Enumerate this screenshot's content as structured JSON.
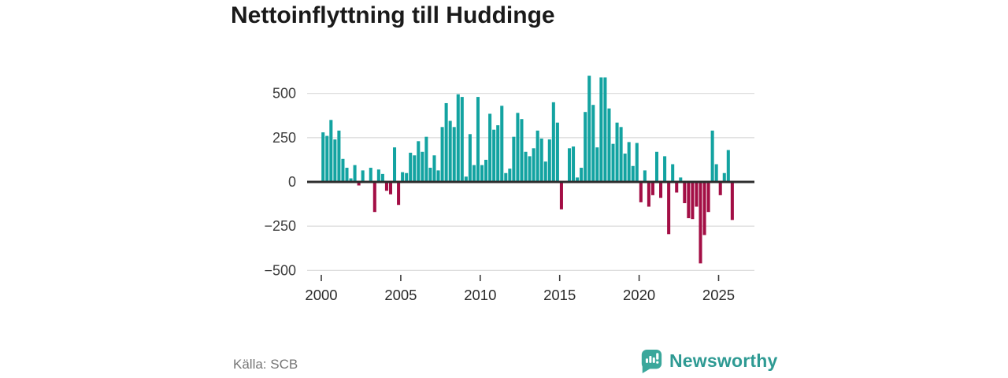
{
  "title": "Nettoinflyttning till Huddinge",
  "source": "Källa: SCB",
  "brand": {
    "name": "Newsworthy",
    "text_color": "#2e9a93",
    "icon_color": "#3aa79b"
  },
  "chart_data": {
    "type": "bar",
    "title": "Nettoinflyttning till Huddinge",
    "frequency": "quarterly",
    "x_start": "2000Q1",
    "x_end": "2025Q4",
    "x_axis": {
      "tick_years": [
        2000,
        2005,
        2010,
        2015,
        2020,
        2025
      ],
      "labels": [
        "2000",
        "2005",
        "2010",
        "2015",
        "2020",
        "2025"
      ]
    },
    "y_axis": {
      "ticks": [
        500,
        250,
        0,
        -250,
        -500
      ],
      "labels": [
        "500",
        "250",
        "0",
        "−250",
        "−500"
      ]
    },
    "ylim": [
      -500,
      620
    ],
    "grid": true,
    "legend": "none",
    "positive_color": "#13a3a1",
    "negative_color": "#a30e45",
    "values": [
      280,
      260,
      350,
      240,
      290,
      130,
      80,
      20,
      95,
      -20,
      65,
      0,
      80,
      -170,
      70,
      45,
      -50,
      -70,
      195,
      -130,
      55,
      50,
      165,
      150,
      230,
      170,
      255,
      80,
      150,
      65,
      310,
      445,
      345,
      310,
      495,
      480,
      30,
      270,
      95,
      480,
      95,
      125,
      385,
      295,
      320,
      430,
      50,
      75,
      255,
      390,
      355,
      170,
      145,
      190,
      290,
      245,
      115,
      240,
      450,
      335,
      -155,
      5,
      190,
      200,
      25,
      80,
      395,
      600,
      435,
      195,
      590,
      590,
      415,
      215,
      335,
      310,
      160,
      225,
      90,
      220,
      -115,
      65,
      -140,
      -75,
      170,
      -90,
      145,
      -295,
      100,
      -60,
      25,
      -120,
      -205,
      -210,
      -140,
      -460,
      -300,
      -170,
      290,
      100,
      -75,
      50,
      180,
      -215
    ]
  }
}
